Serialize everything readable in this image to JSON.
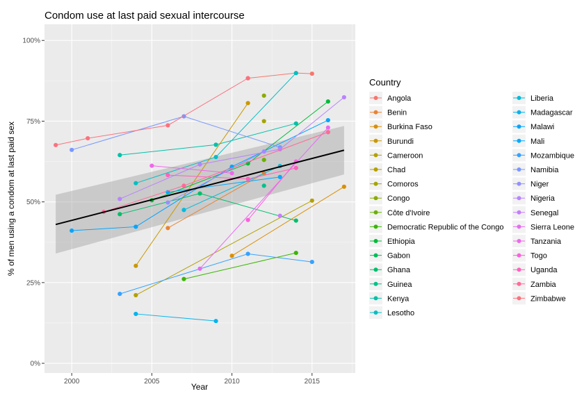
{
  "chart_data": {
    "type": "line",
    "title": "Condom use at last paid sexual intercourse",
    "xlabel": "Year",
    "ylabel": "% of men using a condom at last paid sex",
    "xlim": [
      1998.3,
      2017.7
    ],
    "ylim": [
      -3,
      105
    ],
    "xticks": [
      2000,
      2005,
      2010,
      2015
    ],
    "yticks": [
      0,
      25,
      50,
      75,
      100
    ],
    "ytick_labels": [
      "0%",
      "25%",
      "50%",
      "75%",
      "100%"
    ],
    "legend_title": "Country",
    "legend_position": "right",
    "grid": true,
    "trend": {
      "x0": 1999,
      "y0": 43,
      "x1": 2017,
      "y1": 66,
      "band_lo": [
        34,
        58.5
      ],
      "band_hi": [
        52.2,
        73.5
      ]
    },
    "series": [
      {
        "name": "Angola",
        "color": "#F8766D",
        "points": [
          [
            2011,
            88.3
          ],
          [
            2014,
            89.9
          ],
          [
            2015,
            89.7
          ]
        ]
      },
      {
        "name": "Benin",
        "color": "#EA8331",
        "points": [
          [
            2006,
            41.9
          ],
          [
            2012,
            58.8
          ]
        ]
      },
      {
        "name": "Burkina Faso",
        "color": "#DB8E00",
        "points": [
          [
            2010,
            33.3
          ],
          [
            2017,
            54.7
          ]
        ]
      },
      {
        "name": "Burundi",
        "color": "#C99800",
        "points": [
          [
            2004,
            30.2
          ],
          [
            2011,
            80.6
          ]
        ]
      },
      {
        "name": "Cameroon",
        "color": "#B3A000",
        "points": [
          [
            2004,
            21.1
          ],
          [
            2015,
            50.4
          ]
        ]
      },
      {
        "name": "Chad",
        "color": "#B3A000",
        "points": []
      },
      {
        "name": "Comoros",
        "color": "#A3A500",
        "points": [
          [
            2012,
            75.0
          ]
        ]
      },
      {
        "name": "Congo",
        "color": "#8BAB00",
        "points": [
          [
            2012,
            82.9
          ]
        ]
      },
      {
        "name": "Côte d'Ivoire",
        "color": "#6BB100",
        "points": [
          [
            2012,
            63.0
          ]
        ]
      },
      {
        "name": "Democratic Republic of the Congo",
        "color": "#39B600",
        "points": [
          [
            2007,
            26.1
          ],
          [
            2014,
            34.2
          ]
        ]
      },
      {
        "name": "Ethiopia",
        "color": "#00BA38",
        "points": [
          [
            2005,
            50.5
          ],
          [
            2011,
            61.9
          ],
          [
            2016,
            81.1
          ]
        ]
      },
      {
        "name": "Gabon",
        "color": "#00BC59",
        "points": []
      },
      {
        "name": "Ghana",
        "color": "#00BE6C",
        "points": [
          [
            2003,
            46.2
          ],
          [
            2008,
            52.6
          ],
          [
            2014,
            44.2
          ]
        ]
      },
      {
        "name": "Guinea",
        "color": "#00C08B",
        "points": [
          [
            2012,
            55.0
          ]
        ]
      },
      {
        "name": "Kenya",
        "color": "#00C1A9",
        "points": [
          [
            2003,
            64.5
          ],
          [
            2009,
            67.7
          ],
          [
            2014,
            74.3
          ]
        ]
      },
      {
        "name": "Lesotho",
        "color": "#00BFC4",
        "points": [
          [
            2004,
            55.8
          ],
          [
            2009,
            63.9
          ],
          [
            2014,
            89.9
          ]
        ]
      },
      {
        "name": "Liberia",
        "color": "#00BBDB",
        "points": [
          [
            2007,
            47.5
          ],
          [
            2013,
            61.1
          ]
        ]
      },
      {
        "name": "Madagascar",
        "color": "#00B4EF",
        "points": [
          [
            2004,
            15.3
          ],
          [
            2009,
            13.1
          ]
        ]
      },
      {
        "name": "Malawi",
        "color": "#00A5FF",
        "points": [
          [
            2000,
            41.1
          ],
          [
            2004,
            42.3
          ],
          [
            2010,
            60.9
          ],
          [
            2016,
            75.3
          ]
        ]
      },
      {
        "name": "Mali",
        "color": "#00A9FF",
        "points": [
          [
            2006,
            53.0
          ],
          [
            2013,
            57.7
          ]
        ]
      },
      {
        "name": "Mozambique",
        "color": "#35A2FF",
        "points": [
          [
            2003,
            21.5
          ],
          [
            2011,
            33.9
          ],
          [
            2015,
            31.4
          ]
        ]
      },
      {
        "name": "Namibia",
        "color": "#7997FF",
        "points": [
          [
            2000,
            66.1
          ],
          [
            2007,
            76.5
          ],
          [
            2013,
            66.9
          ]
        ]
      },
      {
        "name": "Niger",
        "color": "#9590FF",
        "points": [
          [
            2006,
            49.8
          ],
          [
            2012,
            65.6
          ]
        ]
      },
      {
        "name": "Nigeria",
        "color": "#B983FF",
        "points": [
          [
            2003,
            50.9
          ],
          [
            2008,
            61.6
          ],
          [
            2013,
            66.3
          ],
          [
            2017,
            82.4
          ]
        ]
      },
      {
        "name": "Senegal",
        "color": "#C77CFF",
        "points": [
          [
            2013,
            45.7
          ]
        ]
      },
      {
        "name": "Sierra Leone",
        "color": "#E76BF3",
        "points": [
          [
            2008,
            29.3
          ],
          [
            2016,
            73.0
          ]
        ]
      },
      {
        "name": "Tanzania",
        "color": "#EF67EB",
        "points": [
          [
            2005,
            61.2
          ],
          [
            2010,
            58.9
          ]
        ]
      },
      {
        "name": "Togo",
        "color": "#FA62DB",
        "points": [
          [
            2011,
            44.4
          ],
          [
            2014,
            62.5
          ]
        ]
      },
      {
        "name": "Uganda",
        "color": "#FF62BC",
        "points": [
          [
            2006,
            58.3
          ],
          [
            2011,
            57.1
          ],
          [
            2014,
            60.5
          ]
        ]
      },
      {
        "name": "Zambia",
        "color": "#FF6A98",
        "points": [
          [
            2002,
            46.9
          ],
          [
            2007,
            55.0
          ],
          [
            2016,
            71.6
          ]
        ]
      },
      {
        "name": "Zimbabwe",
        "color": "#FC717F",
        "points": [
          [
            1999,
            67.6
          ],
          [
            2001,
            69.7
          ],
          [
            2006,
            73.7
          ],
          [
            2011,
            88.3
          ]
        ]
      }
    ]
  }
}
